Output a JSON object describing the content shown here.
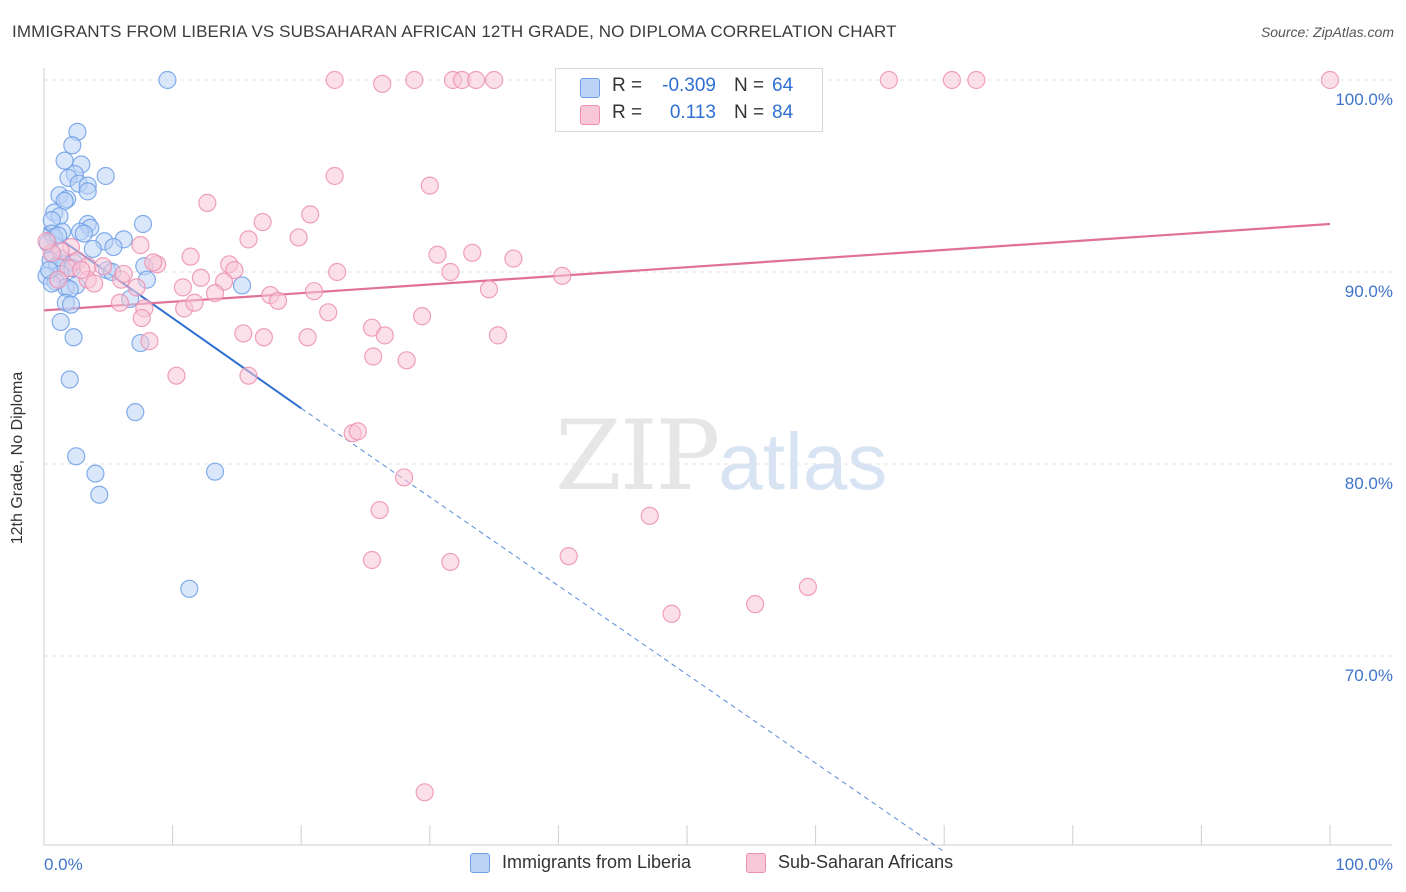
{
  "title": "IMMIGRANTS FROM LIBERIA VS SUBSAHARAN AFRICAN 12TH GRADE, NO DIPLOMA CORRELATION CHART",
  "source": "Source: ZipAtlas.com",
  "watermark": {
    "zip": "ZIP",
    "atlas": "atlas"
  },
  "legend": {
    "rows": [
      {
        "r_label": "R =",
        "r_value": "-0.309",
        "n_label": "N =",
        "n_value": "64",
        "color": "#6f9fe6",
        "fill": "#bcd3f5"
      },
      {
        "r_label": "R =",
        "r_value": "0.113",
        "n_label": "N =",
        "n_value": "84",
        "color": "#ec8fb0",
        "fill": "#f7c6d7"
      }
    ]
  },
  "chart_data": {
    "type": "scatter",
    "title": "IMMIGRANTS FROM LIBERIA VS SUBSAHARAN AFRICAN 12TH GRADE, NO DIPLOMA CORRELATION CHART",
    "xlabel": "",
    "ylabel": "12th Grade, No Diploma",
    "xlim": [
      0,
      100
    ],
    "ylim": [
      60,
      101
    ],
    "x_tick_labels": {
      "left": "0.0%",
      "right": "100.0%"
    },
    "y_ticks": [
      {
        "value": 100,
        "label": "100.0%"
      },
      {
        "value": 90,
        "label": "90.0%"
      },
      {
        "value": 80,
        "label": "80.0%"
      },
      {
        "value": 70,
        "label": "70.0%"
      }
    ],
    "series": [
      {
        "name": "Immigrants from Liberia",
        "color": "#6f9fe6",
        "fill": "#bcd3f5",
        "trend": {
          "x0": 0,
          "y0": 92.3,
          "x1": 20,
          "y1": 82.9,
          "dash_to_x": 70,
          "dash_to_y": 59.8,
          "line_color": "#2f6fd1"
        },
        "points": [
          [
            9.6,
            100
          ],
          [
            2.6,
            97.3
          ],
          [
            2.2,
            96.6
          ],
          [
            1.6,
            95.8
          ],
          [
            2.9,
            95.6
          ],
          [
            2.4,
            95.1
          ],
          [
            4.8,
            95.0
          ],
          [
            1.9,
            94.9
          ],
          [
            2.7,
            94.6
          ],
          [
            3.4,
            94.5
          ],
          [
            3.4,
            94.2
          ],
          [
            1.2,
            94.0
          ],
          [
            1.8,
            93.8
          ],
          [
            1.6,
            93.7
          ],
          [
            0.8,
            93.1
          ],
          [
            1.2,
            92.9
          ],
          [
            0.6,
            92.7
          ],
          [
            3.4,
            92.5
          ],
          [
            7.7,
            92.5
          ],
          [
            3.6,
            92.3
          ],
          [
            1.4,
            92.1
          ],
          [
            2.8,
            92.1
          ],
          [
            0.6,
            92.0
          ],
          [
            3.1,
            92.0
          ],
          [
            0.8,
            91.8
          ],
          [
            6.2,
            91.7
          ],
          [
            4.7,
            91.6
          ],
          [
            0.3,
            91.5
          ],
          [
            5.4,
            91.3
          ],
          [
            3.8,
            91.2
          ],
          [
            0.7,
            90.9
          ],
          [
            1.4,
            90.7
          ],
          [
            0.5,
            90.6
          ],
          [
            2.3,
            90.5
          ],
          [
            1.6,
            90.4
          ],
          [
            7.8,
            90.3
          ],
          [
            1.0,
            90.3
          ],
          [
            2.2,
            90.2
          ],
          [
            4.9,
            90.1
          ],
          [
            5.3,
            90.0
          ],
          [
            1.3,
            89.9
          ],
          [
            0.2,
            89.8
          ],
          [
            8.0,
            89.6
          ],
          [
            0.9,
            89.5
          ],
          [
            15.4,
            89.3
          ],
          [
            1.7,
            89.2
          ],
          [
            2.5,
            89.3
          ],
          [
            2.0,
            89.1
          ],
          [
            0.6,
            89.4
          ],
          [
            6.7,
            88.6
          ],
          [
            1.7,
            88.4
          ],
          [
            2.1,
            88.3
          ],
          [
            1.3,
            87.4
          ],
          [
            2.3,
            86.6
          ],
          [
            7.5,
            86.3
          ],
          [
            2.0,
            84.4
          ],
          [
            7.1,
            82.7
          ],
          [
            2.5,
            80.4
          ],
          [
            4.0,
            79.5
          ],
          [
            13.3,
            79.6
          ],
          [
            4.3,
            78.4
          ],
          [
            11.3,
            73.5
          ],
          [
            0.4,
            90.1
          ],
          [
            1.1,
            91.9
          ]
        ]
      },
      {
        "name": "Sub-Saharan Africans",
        "color": "#ec8fb0",
        "fill": "#f7c6d7",
        "trend": {
          "x0": 0,
          "y0": 88.0,
          "x1": 100,
          "y1": 92.5,
          "line_color": "#e0709a"
        },
        "points": [
          [
            22.6,
            100
          ],
          [
            28.8,
            100
          ],
          [
            31.8,
            100
          ],
          [
            32.5,
            100
          ],
          [
            33.6,
            100
          ],
          [
            35.0,
            100
          ],
          [
            48.0,
            100
          ],
          [
            65.7,
            100
          ],
          [
            70.6,
            100
          ],
          [
            72.5,
            100
          ],
          [
            100,
            100
          ],
          [
            26.3,
            99.8
          ],
          [
            30.0,
            94.5
          ],
          [
            22.6,
            95.0
          ],
          [
            12.7,
            93.6
          ],
          [
            20.7,
            93.0
          ],
          [
            17.0,
            92.6
          ],
          [
            15.9,
            91.7
          ],
          [
            19.8,
            91.8
          ],
          [
            7.5,
            91.4
          ],
          [
            2.1,
            91.3
          ],
          [
            1.3,
            91.1
          ],
          [
            0.6,
            91.0
          ],
          [
            30.6,
            90.9
          ],
          [
            36.5,
            90.7
          ],
          [
            11.4,
            90.8
          ],
          [
            2.6,
            90.6
          ],
          [
            14.4,
            90.4
          ],
          [
            8.8,
            90.4
          ],
          [
            3.4,
            90.3
          ],
          [
            4.6,
            90.3
          ],
          [
            1.9,
            90.2
          ],
          [
            14.8,
            90.1
          ],
          [
            22.8,
            90.0
          ],
          [
            31.6,
            90.0
          ],
          [
            40.3,
            89.8
          ],
          [
            12.2,
            89.7
          ],
          [
            3.4,
            89.6
          ],
          [
            6.0,
            89.6
          ],
          [
            14.0,
            89.5
          ],
          [
            10.8,
            89.2
          ],
          [
            21.0,
            89.0
          ],
          [
            17.6,
            88.8
          ],
          [
            18.2,
            88.5
          ],
          [
            5.9,
            88.4
          ],
          [
            7.8,
            88.1
          ],
          [
            10.9,
            88.1
          ],
          [
            22.1,
            87.9
          ],
          [
            29.4,
            87.7
          ],
          [
            7.6,
            87.6
          ],
          [
            25.5,
            87.1
          ],
          [
            15.5,
            86.8
          ],
          [
            26.5,
            86.7
          ],
          [
            17.1,
            86.6
          ],
          [
            20.5,
            86.6
          ],
          [
            8.2,
            86.4
          ],
          [
            35.3,
            86.7
          ],
          [
            25.6,
            85.6
          ],
          [
            28.2,
            85.4
          ],
          [
            15.9,
            84.6
          ],
          [
            10.3,
            84.6
          ],
          [
            24.0,
            81.6
          ],
          [
            24.4,
            81.7
          ],
          [
            28.0,
            79.3
          ],
          [
            26.1,
            77.6
          ],
          [
            47.1,
            77.3
          ],
          [
            25.5,
            75.0
          ],
          [
            31.6,
            74.9
          ],
          [
            40.8,
            75.2
          ],
          [
            59.4,
            73.6
          ],
          [
            48.8,
            72.2
          ],
          [
            55.3,
            72.7
          ],
          [
            29.6,
            62.9
          ],
          [
            6.2,
            89.9
          ],
          [
            13.3,
            88.9
          ],
          [
            3.9,
            89.4
          ],
          [
            8.5,
            90.5
          ],
          [
            1.1,
            89.6
          ],
          [
            0.2,
            91.6
          ],
          [
            7.2,
            89.2
          ],
          [
            11.7,
            88.4
          ],
          [
            33.3,
            91.0
          ],
          [
            34.6,
            89.1
          ],
          [
            2.9,
            90.1
          ]
        ]
      }
    ],
    "legend_position": "top-center",
    "grid": "horizontal dashed"
  }
}
